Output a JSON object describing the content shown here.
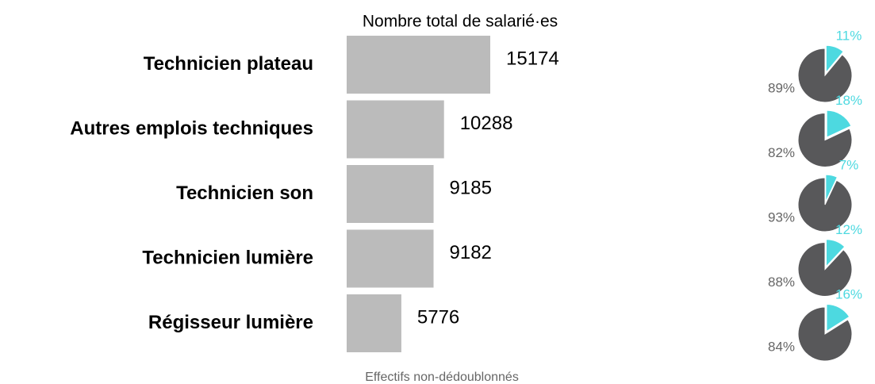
{
  "chart_data": [
    {
      "type": "bar",
      "title": "Nombre total de salarié·es",
      "note": "Effectifs non-dédoublonnés",
      "categories": [
        "Technicien plateau",
        "Autres emplois techniques",
        "Technicien son",
        "Technicien lumière",
        "Régisseur lumière"
      ],
      "values": [
        15174,
        10288,
        9185,
        9182,
        5776
      ],
      "color": "#bbbbbb"
    },
    {
      "type": "pie",
      "values": [
        11,
        89
      ],
      "value_labels": [
        "11%",
        "89%"
      ],
      "colors": [
        "#4dd9e0",
        "#58585a"
      ]
    },
    {
      "type": "pie",
      "values": [
        18,
        82
      ],
      "value_labels": [
        "18%",
        "82%"
      ],
      "colors": [
        "#4dd9e0",
        "#58585a"
      ]
    },
    {
      "type": "pie",
      "values": [
        7,
        93
      ],
      "value_labels": [
        "7%",
        "93%"
      ],
      "colors": [
        "#4dd9e0",
        "#58585a"
      ]
    },
    {
      "type": "pie",
      "values": [
        12,
        88
      ],
      "value_labels": [
        "12%",
        "88%"
      ],
      "colors": [
        "#4dd9e0",
        "#58585a"
      ]
    },
    {
      "type": "pie",
      "values": [
        16,
        84
      ],
      "value_labels": [
        "16%",
        "84%"
      ],
      "colors": [
        "#4dd9e0",
        "#58585a"
      ]
    }
  ]
}
